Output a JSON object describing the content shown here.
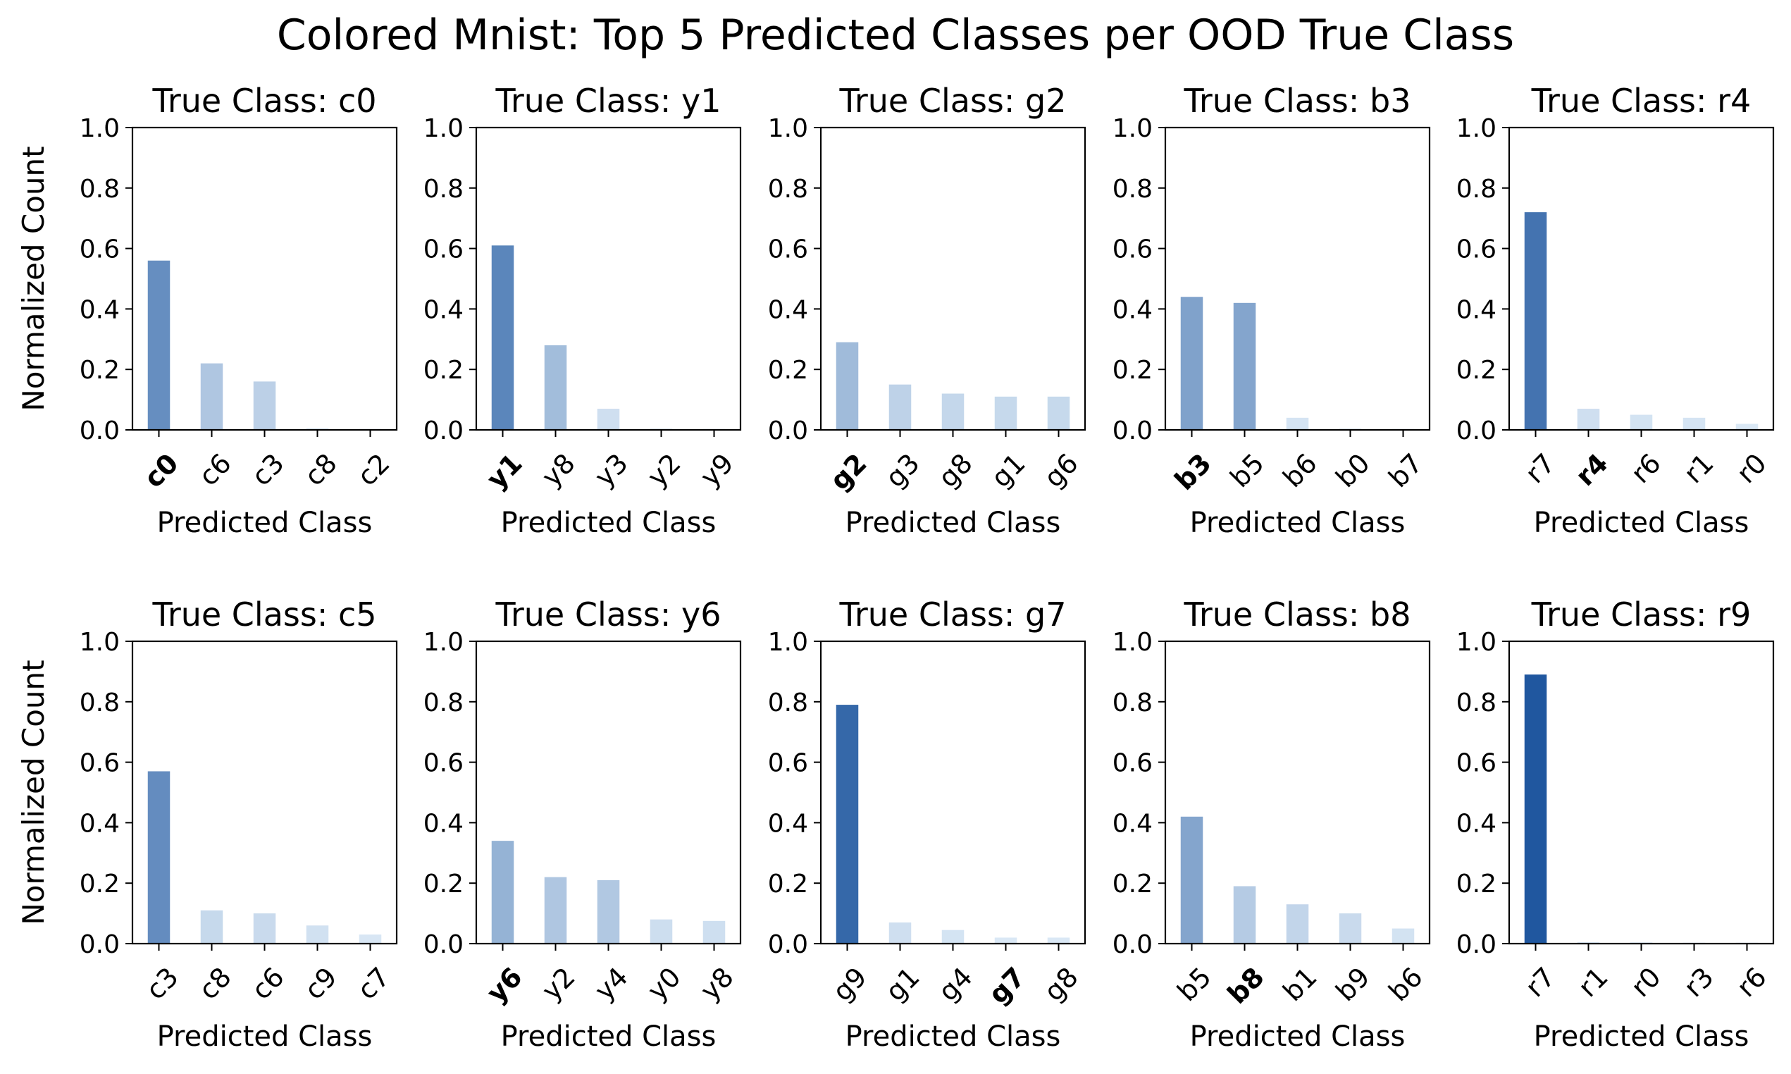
{
  "figure": {
    "title": "Colored Mnist: Top 5 Predicted Classes per OOD True Class"
  },
  "y_ticks": [
    "0.0",
    "0.2",
    "0.4",
    "0.6",
    "0.8",
    "1.0"
  ],
  "chart_data": [
    {
      "type": "bar",
      "title": "True Class: c0",
      "true_class": "c0",
      "xlabel": "Predicted Class",
      "ylabel": "Normalized Count",
      "ylim": [
        0,
        1
      ],
      "categories": [
        "c0",
        "c6",
        "c3",
        "c8",
        "c2"
      ],
      "values": [
        0.56,
        0.22,
        0.16,
        0.005,
        0.003
      ]
    },
    {
      "type": "bar",
      "title": "True Class: y1",
      "true_class": "y1",
      "xlabel": "Predicted Class",
      "ylabel": "",
      "ylim": [
        0,
        1
      ],
      "categories": [
        "y1",
        "y8",
        "y3",
        "y2",
        "y9"
      ],
      "values": [
        0.61,
        0.28,
        0.07,
        0.004,
        0.003
      ]
    },
    {
      "type": "bar",
      "title": "True Class: g2",
      "true_class": "g2",
      "xlabel": "Predicted Class",
      "ylabel": "",
      "ylim": [
        0,
        1
      ],
      "categories": [
        "g2",
        "g3",
        "g8",
        "g1",
        "g6"
      ],
      "values": [
        0.29,
        0.15,
        0.12,
        0.11,
        0.11
      ]
    },
    {
      "type": "bar",
      "title": "True Class: b3",
      "true_class": "b3",
      "xlabel": "Predicted Class",
      "ylabel": "",
      "ylim": [
        0,
        1
      ],
      "categories": [
        "b3",
        "b5",
        "b6",
        "b0",
        "b7"
      ],
      "values": [
        0.44,
        0.42,
        0.04,
        0.004,
        0.003
      ]
    },
    {
      "type": "bar",
      "title": "True Class: r4",
      "true_class": "r4",
      "xlabel": "Predicted Class",
      "ylabel": "",
      "ylim": [
        0,
        1
      ],
      "categories": [
        "r7",
        "r4",
        "r6",
        "r1",
        "r0"
      ],
      "values": [
        0.72,
        0.07,
        0.05,
        0.04,
        0.02
      ]
    },
    {
      "type": "bar",
      "title": "True Class: c5",
      "true_class": "c5",
      "xlabel": "Predicted Class",
      "ylabel": "Normalized Count",
      "ylim": [
        0,
        1
      ],
      "categories": [
        "c3",
        "c8",
        "c6",
        "c9",
        "c7"
      ],
      "values": [
        0.57,
        0.11,
        0.1,
        0.06,
        0.03
      ]
    },
    {
      "type": "bar",
      "title": "True Class: y6",
      "true_class": "y6",
      "xlabel": "Predicted Class",
      "ylabel": "",
      "ylim": [
        0,
        1
      ],
      "categories": [
        "y6",
        "y2",
        "y4",
        "y0",
        "y8"
      ],
      "values": [
        0.34,
        0.22,
        0.21,
        0.08,
        0.075
      ]
    },
    {
      "type": "bar",
      "title": "True Class: g7",
      "true_class": "g7",
      "xlabel": "Predicted Class",
      "ylabel": "",
      "ylim": [
        0,
        1
      ],
      "categories": [
        "g9",
        "g1",
        "g4",
        "g7",
        "g8"
      ],
      "values": [
        0.79,
        0.07,
        0.045,
        0.02,
        0.02
      ]
    },
    {
      "type": "bar",
      "title": "True Class: b8",
      "true_class": "b8",
      "xlabel": "Predicted Class",
      "ylabel": "",
      "ylim": [
        0,
        1
      ],
      "categories": [
        "b5",
        "b8",
        "b1",
        "b9",
        "b6"
      ],
      "values": [
        0.42,
        0.19,
        0.13,
        0.1,
        0.05
      ]
    },
    {
      "type": "bar",
      "title": "True Class: r9",
      "true_class": "r9",
      "xlabel": "Predicted Class",
      "ylabel": "",
      "ylim": [
        0,
        1
      ],
      "categories": [
        "r7",
        "r1",
        "r0",
        "r3",
        "r6"
      ],
      "values": [
        0.89,
        0.005,
        0.004,
        0.003,
        0.003
      ]
    }
  ]
}
